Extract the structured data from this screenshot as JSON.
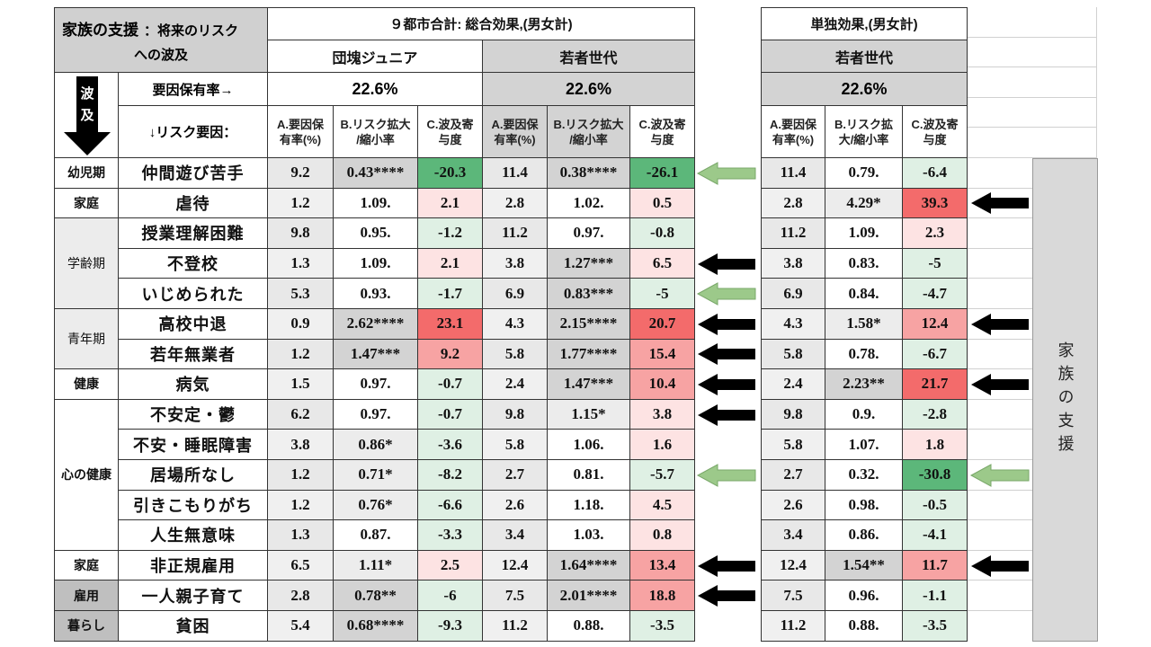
{
  "title": {
    "main": "家族の支援",
    "sub": "：将来のリスク",
    "sub2": "への波及"
  },
  "wave_label": {
    "line1": "波",
    "line2": "及"
  },
  "group_headers": {
    "cities": "９都市合計: 総合効果,(男女計)",
    "single": "単独効果,(男女計)",
    "junior": "団塊ジュニア",
    "youth": "若者世代",
    "youth2": "若者世代"
  },
  "row_labels": {
    "rate": "要因保有率→",
    "risk": "↓リスク要因："
  },
  "rates": [
    "22.6%",
    "22.6%",
    "22.6%"
  ],
  "col_headers": {
    "a": [
      "A.要因保",
      "有率(%)"
    ],
    "b": [
      "B.リスク拡大",
      "/縮小率"
    ],
    "c": [
      "C.波及寄",
      "与度"
    ],
    "b2": [
      "B.リスク拡",
      "大/縮小率"
    ]
  },
  "side_label": "家族の支援",
  "colors": {
    "strong_green": "#5cb77a",
    "light_green": "#dff0e4",
    "strong_red": "#f36b6b",
    "mid_red": "#f7a3a3",
    "light_red": "#fde3e3",
    "grey": "#d3d3d3",
    "light_grey": "#ececec",
    "arrow_black": "#000000",
    "arrow_green": "#9cc98a"
  },
  "categories": [
    {
      "name": "幼児期",
      "rows": 1
    },
    {
      "name": "家庭",
      "rows": 1
    },
    {
      "name": "学齢期",
      "rows": 3
    },
    {
      "name": "青年期",
      "rows": 2
    },
    {
      "name": "健康",
      "rows": 1
    },
    {
      "name": "心の健康",
      "rows": 5
    },
    {
      "name": "家庭",
      "rows": 1
    },
    {
      "name": "雇用",
      "rows": 1
    },
    {
      "name": "暮らし",
      "rows": 1
    }
  ],
  "chart_data": {
    "type": "table",
    "rows": [
      {
        "risk": "仲間遊び苦手",
        "junior": [
          "9.2",
          "0.43****",
          "-20.3"
        ],
        "youth": [
          "11.4",
          "0.38****",
          "-26.1"
        ],
        "single": [
          "11.4",
          "0.79.",
          "-6.4"
        ],
        "arrow_total": "green",
        "arrow_single": ""
      },
      {
        "risk": "虐待",
        "junior": [
          "1.2",
          "1.09.",
          "2.1"
        ],
        "youth": [
          "2.8",
          "1.02.",
          "0.5"
        ],
        "single": [
          "2.8",
          "4.29*",
          "39.3"
        ],
        "arrow_total": "",
        "arrow_single": "black"
      },
      {
        "risk": "授業理解困難",
        "junior": [
          "9.8",
          "0.95.",
          "-1.2"
        ],
        "youth": [
          "11.2",
          "0.97.",
          "-0.8"
        ],
        "single": [
          "11.2",
          "1.09.",
          "2.3"
        ],
        "arrow_total": "",
        "arrow_single": ""
      },
      {
        "risk": "不登校",
        "junior": [
          "1.3",
          "1.09.",
          "2.1"
        ],
        "youth": [
          "3.8",
          "1.27***",
          "6.5"
        ],
        "single": [
          "3.8",
          "0.83.",
          "-5"
        ],
        "arrow_total": "black",
        "arrow_single": ""
      },
      {
        "risk": "いじめられた",
        "junior": [
          "5.3",
          "0.93.",
          "-1.7"
        ],
        "youth": [
          "6.9",
          "0.83***",
          "-5"
        ],
        "single": [
          "6.9",
          "0.84.",
          "-4.7"
        ],
        "arrow_total": "green",
        "arrow_single": ""
      },
      {
        "risk": "高校中退",
        "junior": [
          "0.9",
          "2.62****",
          "23.1"
        ],
        "youth": [
          "4.3",
          "2.15****",
          "20.7"
        ],
        "single": [
          "4.3",
          "1.58*",
          "12.4"
        ],
        "arrow_total": "black",
        "arrow_single": "black"
      },
      {
        "risk": "若年無業者",
        "junior": [
          "1.2",
          "1.47***",
          "9.2"
        ],
        "youth": [
          "5.8",
          "1.77****",
          "15.4"
        ],
        "single": [
          "5.8",
          "0.78.",
          "-6.7"
        ],
        "arrow_total": "black",
        "arrow_single": ""
      },
      {
        "risk": "病気",
        "junior": [
          "1.5",
          "0.97.",
          "-0.7"
        ],
        "youth": [
          "2.4",
          "1.47***",
          "10.4"
        ],
        "single": [
          "2.4",
          "2.23**",
          "21.7"
        ],
        "arrow_total": "black",
        "arrow_single": "black"
      },
      {
        "risk": "不安定・鬱",
        "junior": [
          "6.2",
          "0.97.",
          "-0.7"
        ],
        "youth": [
          "9.8",
          "1.15*",
          "3.8"
        ],
        "single": [
          "9.8",
          "0.9.",
          "-2.8"
        ],
        "arrow_total": "black",
        "arrow_single": ""
      },
      {
        "risk": "不安・睡眠障害",
        "junior": [
          "3.8",
          "0.86*",
          "-3.6"
        ],
        "youth": [
          "5.8",
          "1.06.",
          "1.6"
        ],
        "single": [
          "5.8",
          "1.07.",
          "1.8"
        ],
        "arrow_total": "",
        "arrow_single": ""
      },
      {
        "risk": "居場所なし",
        "junior": [
          "1.2",
          "0.71*",
          "-8.2"
        ],
        "youth": [
          "2.7",
          "0.81.",
          "-5.7"
        ],
        "single": [
          "2.7",
          "0.32.",
          "-30.8"
        ],
        "arrow_total": "green",
        "arrow_single": "green"
      },
      {
        "risk": "引きこもりがち",
        "junior": [
          "1.2",
          "0.76*",
          "-6.6"
        ],
        "youth": [
          "2.6",
          "1.18.",
          "4.5"
        ],
        "single": [
          "2.6",
          "0.98.",
          "-0.5"
        ],
        "arrow_total": "",
        "arrow_single": ""
      },
      {
        "risk": "人生無意味",
        "junior": [
          "1.3",
          "0.87.",
          "-3.3"
        ],
        "youth": [
          "3.4",
          "1.03.",
          "0.8"
        ],
        "single": [
          "3.4",
          "0.86.",
          "-4.1"
        ],
        "arrow_total": "",
        "arrow_single": ""
      },
      {
        "risk": "非正規雇用",
        "junior": [
          "6.5",
          "1.11*",
          "2.5"
        ],
        "youth": [
          "12.4",
          "1.64****",
          "13.4"
        ],
        "single": [
          "12.4",
          "1.54**",
          "11.7"
        ],
        "arrow_total": "black",
        "arrow_single": "black"
      },
      {
        "risk": "一人親子育て",
        "junior": [
          "2.8",
          "0.78**",
          "-6"
        ],
        "youth": [
          "7.5",
          "2.01****",
          "18.8"
        ],
        "single": [
          "7.5",
          "0.96.",
          "-1.1"
        ],
        "arrow_total": "black",
        "arrow_single": ""
      },
      {
        "risk": "貧困",
        "junior": [
          "5.4",
          "0.68****",
          "-9.3"
        ],
        "youth": [
          "11.2",
          "0.88.",
          "-3.5"
        ],
        "single": [
          "11.2",
          "0.88.",
          "-3.5"
        ],
        "arrow_total": "",
        "arrow_single": ""
      }
    ]
  }
}
